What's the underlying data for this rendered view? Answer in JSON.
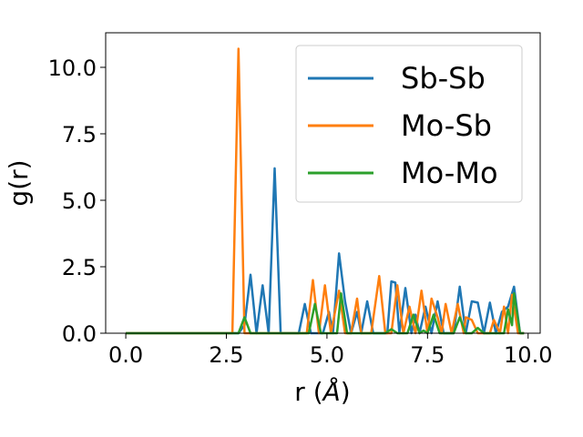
{
  "chart_data": {
    "type": "line",
    "title": "",
    "xlabel": "r (Å)",
    "ylabel": "g(r)",
    "xlim": [
      -0.5,
      10.3
    ],
    "ylim": [
      0,
      11.3
    ],
    "xticks": [
      "0.0",
      "2.5",
      "5.0",
      "7.5",
      "10.0"
    ],
    "yticks": [
      "0.0",
      "2.5",
      "5.0",
      "7.5",
      "10.0"
    ],
    "legend_position": "top-right",
    "grid": false,
    "colors": {
      "Sb-Sb": "#1f77b4",
      "Mo-Sb": "#ff7f0e",
      "Mo-Mo": "#2ca02c"
    },
    "series": [
      {
        "name": "Sb-Sb",
        "points": [
          [
            0,
            0
          ],
          [
            2.8,
            0
          ],
          [
            2.95,
            0.3
          ],
          [
            3.1,
            2.2
          ],
          [
            3.25,
            0
          ],
          [
            3.4,
            1.8
          ],
          [
            3.55,
            0
          ],
          [
            3.7,
            6.2
          ],
          [
            3.85,
            0
          ],
          [
            4.3,
            0
          ],
          [
            4.45,
            1.1
          ],
          [
            4.6,
            0
          ],
          [
            4.9,
            0
          ],
          [
            5.05,
            0.8
          ],
          [
            5.15,
            0
          ],
          [
            5.3,
            3.0
          ],
          [
            5.45,
            1.2
          ],
          [
            5.6,
            0
          ],
          [
            5.75,
            0.8
          ],
          [
            5.85,
            0
          ],
          [
            6.0,
            1.2
          ],
          [
            6.15,
            0
          ],
          [
            6.5,
            0
          ],
          [
            6.6,
            1.95
          ],
          [
            6.7,
            1.9
          ],
          [
            6.8,
            0
          ],
          [
            6.95,
            1.7
          ],
          [
            7.1,
            0
          ],
          [
            7.2,
            0.7
          ],
          [
            7.3,
            0
          ],
          [
            7.45,
            1.0
          ],
          [
            7.6,
            0
          ],
          [
            7.75,
            1.2
          ],
          [
            7.9,
            0
          ],
          [
            8.15,
            0
          ],
          [
            8.3,
            1.75
          ],
          [
            8.45,
            0
          ],
          [
            8.6,
            1.2
          ],
          [
            8.75,
            1.15
          ],
          [
            8.9,
            0
          ],
          [
            9.05,
            1.15
          ],
          [
            9.2,
            0
          ],
          [
            9.35,
            0.8
          ],
          [
            9.5,
            1.0
          ],
          [
            9.65,
            1.75
          ],
          [
            9.8,
            0
          ],
          [
            9.9,
            0
          ]
        ]
      },
      {
        "name": "Mo-Sb",
        "points": [
          [
            0,
            0
          ],
          [
            2.65,
            0
          ],
          [
            2.8,
            10.7
          ],
          [
            2.95,
            0
          ],
          [
            4.5,
            0
          ],
          [
            4.65,
            2.0
          ],
          [
            4.8,
            0
          ],
          [
            4.95,
            1.8
          ],
          [
            5.1,
            0
          ],
          [
            5.3,
            1.6
          ],
          [
            5.45,
            0
          ],
          [
            5.6,
            0
          ],
          [
            5.75,
            1.3
          ],
          [
            5.85,
            0
          ],
          [
            6.1,
            0
          ],
          [
            6.3,
            2.15
          ],
          [
            6.45,
            0
          ],
          [
            6.6,
            0
          ],
          [
            6.75,
            1.8
          ],
          [
            6.9,
            0
          ],
          [
            7.05,
            1.0
          ],
          [
            7.2,
            0
          ],
          [
            7.35,
            1.6
          ],
          [
            7.5,
            0
          ],
          [
            7.6,
            1.3
          ],
          [
            7.75,
            0.6
          ],
          [
            7.85,
            0
          ],
          [
            7.95,
            1.1
          ],
          [
            8.1,
            0
          ],
          [
            8.25,
            1.1
          ],
          [
            8.4,
            0
          ],
          [
            8.45,
            0.6
          ],
          [
            8.6,
            0.5
          ],
          [
            8.75,
            0
          ],
          [
            9.05,
            0
          ],
          [
            9.15,
            0.5
          ],
          [
            9.3,
            0
          ],
          [
            9.4,
            1.0
          ],
          [
            9.5,
            0
          ],
          [
            9.6,
            1.45
          ],
          [
            9.75,
            0
          ],
          [
            9.9,
            0
          ]
        ]
      },
      {
        "name": "Mo-Mo",
        "points": [
          [
            0,
            0
          ],
          [
            2.8,
            0
          ],
          [
            2.95,
            0.6
          ],
          [
            3.1,
            0
          ],
          [
            4.55,
            0
          ],
          [
            4.7,
            1.1
          ],
          [
            4.85,
            0
          ],
          [
            5.25,
            0
          ],
          [
            5.35,
            1.5
          ],
          [
            5.5,
            0
          ],
          [
            6.45,
            0
          ],
          [
            6.6,
            0.15
          ],
          [
            6.75,
            0
          ],
          [
            7.0,
            0
          ],
          [
            7.15,
            0.7
          ],
          [
            7.3,
            0
          ],
          [
            7.4,
            0.1
          ],
          [
            7.5,
            0
          ],
          [
            7.65,
            0.7
          ],
          [
            7.8,
            0
          ],
          [
            8.15,
            0
          ],
          [
            8.3,
            0.6
          ],
          [
            8.45,
            0
          ],
          [
            8.6,
            0
          ],
          [
            8.75,
            0.2
          ],
          [
            8.9,
            0
          ],
          [
            9.4,
            0
          ],
          [
            9.5,
            0.9
          ],
          [
            9.6,
            0.3
          ],
          [
            9.65,
            1.5
          ],
          [
            9.8,
            0
          ],
          [
            9.9,
            0
          ]
        ]
      }
    ]
  }
}
